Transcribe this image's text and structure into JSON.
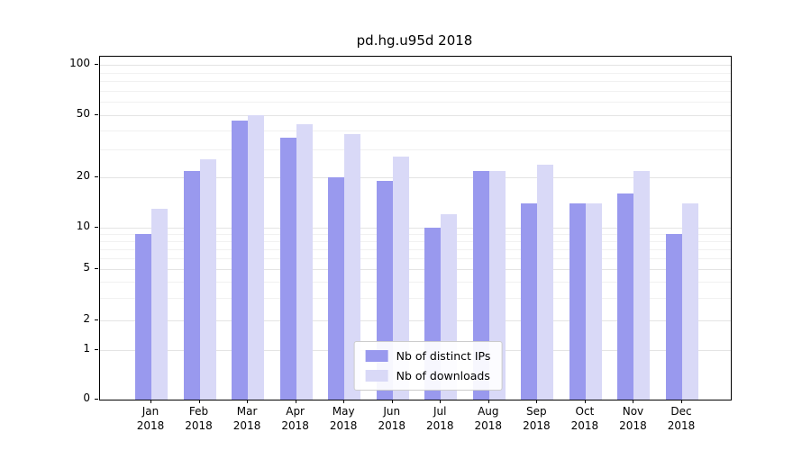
{
  "title": "pd.hg.u95d 2018",
  "colors": {
    "ips_bar": "#9999ee",
    "downloads_bar": "#d9d9f7",
    "grid_major": "#e4e4e4",
    "grid_minor": "#f1f1f1",
    "axis": "#000000",
    "legend_border": "#cccccc"
  },
  "legend": {
    "items": [
      {
        "label": "Nb of distinct IPs",
        "color": "#9999ee"
      },
      {
        "label": "Nb of downloads",
        "color": "#d9d9f7"
      }
    ]
  },
  "chart_data": {
    "type": "bar",
    "title": "pd.hg.u95d 2018",
    "categories": [
      "Jan 2018",
      "Feb 2018",
      "Mar 2018",
      "Apr 2018",
      "May 2018",
      "Jun 2018",
      "Jul 2018",
      "Aug 2018",
      "Sep 2018",
      "Oct 2018",
      "Nov 2018",
      "Dec 2018"
    ],
    "series": [
      {
        "name": "Nb of distinct IPs",
        "color": "#9999ee",
        "values": [
          9,
          22,
          46,
          36,
          20,
          19,
          10,
          22,
          14,
          14,
          16,
          9
        ]
      },
      {
        "name": "Nb of downloads",
        "color": "#d9d9f7",
        "values": [
          13,
          26,
          50,
          44,
          38,
          27,
          12,
          22,
          24,
          14,
          22,
          14
        ]
      }
    ],
    "xlabel": "",
    "ylabel": "",
    "yscale": "symlog",
    "yticks": [
      0,
      1,
      2,
      5,
      10,
      20,
      50,
      100
    ],
    "ylim": [
      0,
      110
    ],
    "grid": true,
    "legend_position": "lower center"
  }
}
